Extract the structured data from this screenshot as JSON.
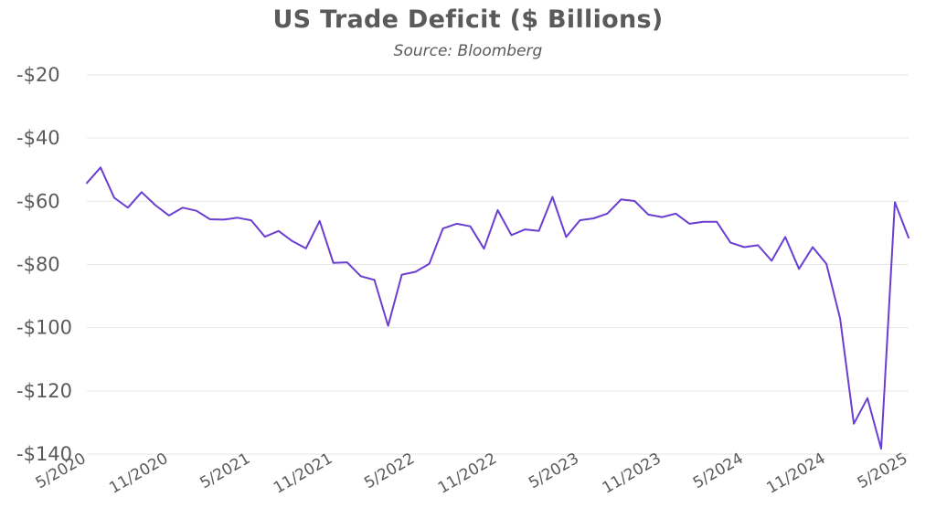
{
  "chart_data": {
    "type": "line",
    "title": "US Trade Deficit ($ Billions)",
    "subtitle": "Source: Bloomberg",
    "xlabel": "",
    "ylabel": "",
    "ylim": [
      -140,
      -20
    ],
    "y_ticks": [
      -20,
      -40,
      -60,
      -80,
      -100,
      -120,
      -140
    ],
    "y_tick_labels": [
      "-$20",
      "-$40",
      "-$60",
      "-$80",
      "-$100",
      "-$120",
      "-$140"
    ],
    "x_tick_labels": [
      "5/2020",
      "11/2020",
      "5/2021",
      "11/2021",
      "5/2022",
      "11/2022",
      "5/2023",
      "11/2023",
      "5/2024",
      "11/2024",
      "5/2025"
    ],
    "grid": true,
    "legend": "none",
    "line_color": "#6a3fd0",
    "series": [
      {
        "x": [
          "5/2020",
          "6/2020",
          "7/2020",
          "8/2020",
          "9/2020",
          "10/2020",
          "11/2020",
          "12/2020",
          "1/2021",
          "2/2021",
          "3/2021",
          "4/2021",
          "5/2021",
          "6/2021",
          "7/2021",
          "8/2021",
          "9/2021",
          "10/2021",
          "11/2021",
          "12/2021",
          "1/2022",
          "2/2022",
          "3/2022",
          "4/2022",
          "5/2022",
          "6/2022",
          "7/2022",
          "8/2022",
          "9/2022",
          "10/2022",
          "11/2022",
          "12/2022",
          "1/2023",
          "2/2023",
          "3/2023",
          "4/2023",
          "5/2023",
          "6/2023",
          "7/2023",
          "8/2023",
          "9/2023",
          "10/2023",
          "11/2023",
          "12/2023",
          "1/2024",
          "2/2024",
          "3/2024",
          "4/2024",
          "5/2024",
          "6/2024",
          "7/2024",
          "8/2024",
          "9/2024",
          "10/2024",
          "11/2024",
          "12/2024",
          "1/2025",
          "2/2025",
          "3/2025",
          "4/2025",
          "5/2025"
        ],
        "values": [
          -54.2,
          -49.3,
          -58.9,
          -62.0,
          -57.1,
          -61.2,
          -64.5,
          -62.0,
          -63.0,
          -65.7,
          -65.8,
          -65.2,
          -66.0,
          -71.2,
          -69.4,
          -72.6,
          -74.9,
          -66.2,
          -79.5,
          -79.3,
          -83.7,
          -84.9,
          -99.4,
          -83.2,
          -82.3,
          -79.8,
          -68.6,
          -67.1,
          -67.9,
          -75.0,
          -62.8,
          -70.7,
          -68.9,
          -69.4,
          -58.6,
          -71.3,
          -66.0,
          -65.4,
          -63.9,
          -59.4,
          -59.9,
          -64.2,
          -65.0,
          -63.9,
          -67.1,
          -66.5,
          -66.5,
          -73.1,
          -74.5,
          -73.9,
          -78.8,
          -71.3,
          -81.4,
          -74.5,
          -79.8,
          -97.1,
          -130.4,
          -122.3,
          -138.3,
          -60.3,
          -71.5
        ]
      }
    ]
  }
}
